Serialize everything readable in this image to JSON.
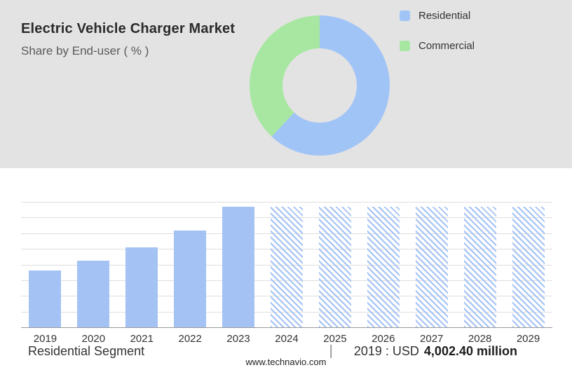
{
  "header": {
    "title": "Electric Vehicle Charger Market",
    "subtitle": "Share by End-user ( % )"
  },
  "legend": [
    {
      "label": "Residential",
      "color": "#a1c4f7"
    },
    {
      "label": "Commercial",
      "color": "#a8e7a2"
    }
  ],
  "chart_data": [
    {
      "type": "pie",
      "donut": true,
      "title": "Share by End-user (%)",
      "labels": [
        "Residential",
        "Commercial"
      ],
      "values": [
        62,
        38
      ],
      "colors": [
        "#a1c4f7",
        "#a8e7a2"
      ],
      "legend_position": "right"
    },
    {
      "type": "bar",
      "categories": [
        "2019",
        "2020",
        "2021",
        "2022",
        "2023",
        "2024",
        "2025",
        "2026",
        "2027",
        "2028",
        "2029"
      ],
      "values_relative": [
        0.47,
        0.55,
        0.66,
        0.8,
        1.0,
        1.0,
        1.0,
        1.0,
        1.0,
        1.0,
        1.0
      ],
      "forecast_from_index": 5,
      "bar_color": "#a4c2f4",
      "known_point": {
        "year": "2019",
        "value": "USD 4,002.40 million"
      },
      "grid": true,
      "gridline_intervals": 8,
      "ylim": [
        0,
        1
      ],
      "xlabel": "",
      "ylabel": ""
    }
  ],
  "footer": {
    "segment_label": "Residential Segment",
    "divider": "|",
    "value_prefix": "2019 : USD",
    "value_bold": "4,002.40 million",
    "website": "www.technavio.com"
  }
}
